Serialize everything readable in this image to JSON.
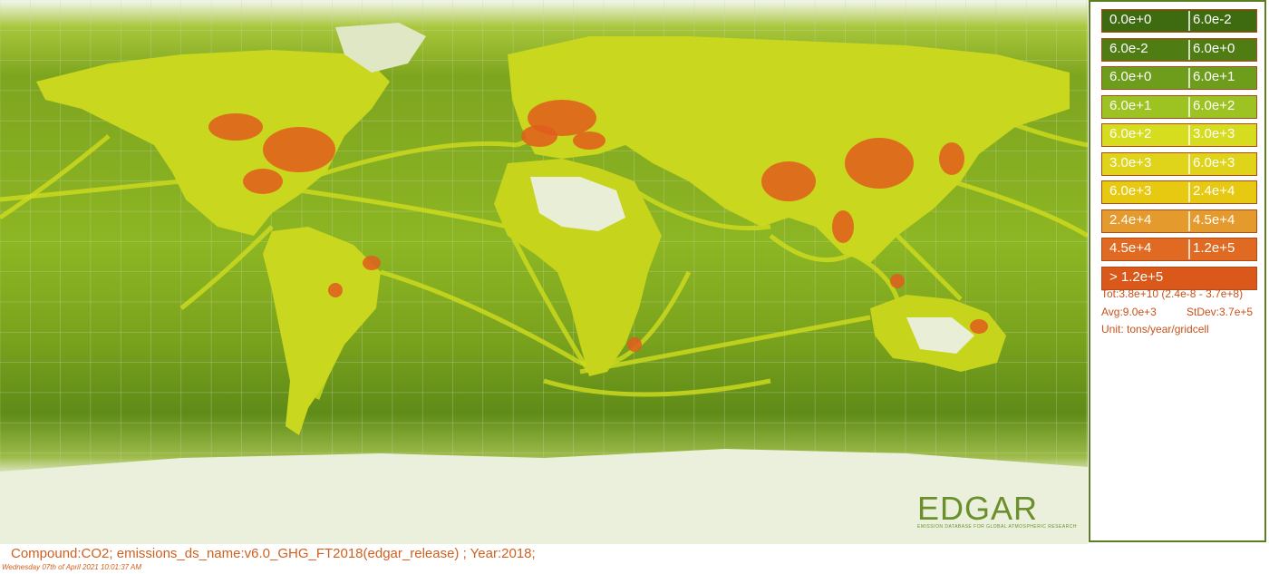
{
  "legend": {
    "classes": [
      {
        "lo": "0.0e+0",
        "hi": "6.0e-2",
        "color": "#3f6b10"
      },
      {
        "lo": "6.0e-2",
        "hi": "6.0e+0",
        "color": "#4f7d14"
      },
      {
        "lo": "6.0e+0",
        "hi": "6.0e+1",
        "color": "#6e9c1b"
      },
      {
        "lo": "6.0e+1",
        "hi": "6.0e+2",
        "color": "#9cc321"
      },
      {
        "lo": "6.0e+2",
        "hi": "3.0e+3",
        "color": "#d6dd1e"
      },
      {
        "lo": "3.0e+3",
        "hi": "6.0e+3",
        "color": "#e0d41a"
      },
      {
        "lo": "6.0e+3",
        "hi": "2.4e+4",
        "color": "#e8c912"
      },
      {
        "lo": "2.4e+4",
        "hi": "4.5e+4",
        "color": "#e59a2e"
      },
      {
        "lo": "4.5e+4",
        "hi": "1.2e+5",
        "color": "#e16a22"
      },
      {
        "lo": "> 1.2e+5",
        "hi": "",
        "color": "#d9581a"
      }
    ],
    "total": "Tot:3.8e+10 (2.4e-8 - 3.7e+8)",
    "avg": "Avg:9.0e+3",
    "stdev": "StDev:3.7e+5",
    "unit": "Unit: tons/year/gridcell"
  },
  "caption": "Compound:CO2; emissions_ds_name:v6.0_GHG_FT2018(edgar_release) ; Year:2018;",
  "timestamp": "Wednesday 07th of April 2021 10:01:37 AM",
  "logo": {
    "name": "EDGAR",
    "tagline": "EMISSION DATABASE FOR GLOBAL ATMOSPHERIC RESEARCH"
  },
  "colors": {
    "ocean_low": "#6f9a1c",
    "ocean_mid": "#8fb824",
    "shipping": "#cfdc1e",
    "land": "#c9d91c",
    "hotspot": "#e05d1c",
    "empty": "#f7f9f2",
    "grid": "#c7d4b0"
  }
}
